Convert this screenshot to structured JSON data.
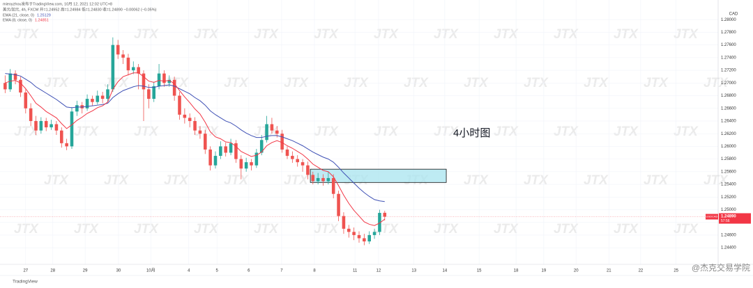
{
  "chart_data": {
    "type": "candlestick",
    "header": [
      "mieoyzhou发布于TradingView.com, 10月 12, 2021 12:02 UTC+8",
      "美元/加元, 4h, FXCM  开=1.24952 高=1.24984 低=1.24830 收=1.24890 −0.00062 (−0.05%)"
    ],
    "annotation": "4小时图",
    "currency": "CAD",
    "watermark": "JTX",
    "footer_brand": "TradingView",
    "credit": "@杰克交易学院",
    "up_color": "#26a69a",
    "down_color": "#ef5350",
    "grid": true,
    "open": [
      1.27,
      1.269,
      1.2715,
      1.2705,
      1.2685,
      1.266,
      1.264,
      1.2625,
      1.264,
      1.263,
      1.2635,
      1.2625,
      1.2605,
      1.26,
      1.2655,
      1.2665,
      1.266,
      1.2675,
      1.267,
      1.268,
      1.2675,
      1.269,
      1.276,
      1.2745,
      1.274,
      1.272,
      1.2725,
      1.2715,
      1.269,
      1.2675,
      1.2695,
      1.2715,
      1.27,
      1.2705,
      1.268,
      1.265,
      1.2645,
      1.264,
      1.2625,
      1.262,
      1.2595,
      1.257,
      1.2585,
      1.26,
      1.259,
      1.2605,
      1.258,
      1.2565,
      1.2575,
      1.257,
      1.259,
      1.261,
      1.2635,
      1.2625,
      1.262,
      1.2595,
      1.2585,
      1.258,
      1.2575,
      1.257,
      1.2555,
      1.2545,
      1.255,
      1.2545,
      1.255,
      1.2525,
      1.249,
      1.247,
      1.2465,
      1.246,
      1.2455,
      1.245,
      1.246,
      1.2465,
      1.24952
    ],
    "high": [
      1.2712,
      1.2722,
      1.272,
      1.271,
      1.269,
      1.2668,
      1.2648,
      1.2646,
      1.2645,
      1.2642,
      1.264,
      1.263,
      1.2612,
      1.2662,
      1.2672,
      1.267,
      1.2682,
      1.268,
      1.2688,
      1.2686,
      1.2698,
      1.2772,
      1.2768,
      1.2752,
      1.2746,
      1.2734,
      1.273,
      1.272,
      1.2698,
      1.2702,
      1.273,
      1.272,
      1.2712,
      1.271,
      1.2686,
      1.266,
      1.2652,
      1.2646,
      1.2632,
      1.2626,
      1.26,
      1.2592,
      1.2608,
      1.2606,
      1.2612,
      1.261,
      1.2586,
      1.2582,
      1.258,
      1.2596,
      1.2618,
      1.2648,
      1.2645,
      1.2632,
      1.2626,
      1.26,
      1.2592,
      1.2586,
      1.258,
      1.2576,
      1.256,
      1.2558,
      1.2556,
      1.256,
      1.2556,
      1.253,
      1.2496,
      1.2476,
      1.2472,
      1.2466,
      1.2462,
      1.2466,
      1.247,
      1.25,
      1.24984
    ],
    "low": [
      1.2684,
      1.2686,
      1.2698,
      1.2678,
      1.2652,
      1.2632,
      1.2618,
      1.262,
      1.2624,
      1.2626,
      1.2618,
      1.2598,
      1.2594,
      1.2596,
      1.2648,
      1.2652,
      1.2656,
      1.2664,
      1.2666,
      1.2668,
      1.267,
      1.2686,
      1.2738,
      1.273,
      1.2712,
      1.2714,
      1.269,
      1.264,
      1.266,
      1.267,
      1.269,
      1.2694,
      1.2694,
      1.2672,
      1.2642,
      1.2636,
      1.263,
      1.2618,
      1.2612,
      1.2588,
      1.2562,
      1.2565,
      1.258,
      1.2584,
      1.2586,
      1.2574,
      1.2548,
      1.256,
      1.2562,
      1.2566,
      1.2586,
      1.2606,
      1.262,
      1.2614,
      1.259,
      1.258,
      1.2574,
      1.2568,
      1.256,
      1.2548,
      1.254,
      1.254,
      1.2538,
      1.254,
      1.2518,
      1.2482,
      1.2462,
      1.2456,
      1.2452,
      1.2448,
      1.2444,
      1.2446,
      1.2454,
      1.246,
      1.2483
    ],
    "close": [
      1.269,
      1.2715,
      1.2705,
      1.2685,
      1.266,
      1.264,
      1.2625,
      1.264,
      1.263,
      1.2635,
      1.2625,
      1.2605,
      1.26,
      1.2655,
      1.2665,
      1.266,
      1.2675,
      1.267,
      1.268,
      1.2675,
      1.269,
      1.276,
      1.2745,
      1.274,
      1.272,
      1.2725,
      1.2715,
      1.269,
      1.2675,
      1.2695,
      1.2715,
      1.27,
      1.2705,
      1.268,
      1.265,
      1.2645,
      1.264,
      1.2625,
      1.262,
      1.2595,
      1.257,
      1.2585,
      1.26,
      1.259,
      1.2605,
      1.258,
      1.2565,
      1.2575,
      1.257,
      1.259,
      1.261,
      1.2635,
      1.2625,
      1.262,
      1.2595,
      1.2585,
      1.258,
      1.2575,
      1.257,
      1.2555,
      1.2545,
      1.255,
      1.2545,
      1.255,
      1.2525,
      1.249,
      1.247,
      1.2465,
      1.246,
      1.2455,
      1.245,
      1.246,
      1.2465,
      1.2495,
      1.2489
    ],
    "series": [
      {
        "name": "EMA (21, close, 0)",
        "color": "#3f51b5",
        "values": [
          1.2715,
          1.2714,
          1.2713,
          1.2711,
          1.2706,
          1.2701,
          1.2694,
          1.2689,
          1.2684,
          1.2679,
          1.2674,
          1.2668,
          1.2662,
          1.2661,
          1.2662,
          1.2662,
          1.2663,
          1.2664,
          1.2665,
          1.2666,
          1.2668,
          1.2677,
          1.2683,
          1.2688,
          1.2691,
          1.2694,
          1.2696,
          1.2695,
          1.2693,
          1.2693,
          1.2695,
          1.2696,
          1.2697,
          1.2695,
          1.2691,
          1.2687,
          1.2683,
          1.2677,
          1.2672,
          1.2665,
          1.2656,
          1.265,
          1.2645,
          1.264,
          1.2637,
          1.2632,
          1.2626,
          1.2621,
          1.2617,
          1.2614,
          1.2614,
          1.2616,
          1.2617,
          1.2617,
          1.2615,
          1.2612,
          1.2609,
          1.2605,
          1.2601,
          1.2596,
          1.2591,
          1.2587,
          1.2583,
          1.258,
          1.2575,
          1.2567,
          1.2558,
          1.255,
          1.2542,
          1.2534,
          1.2527,
          1.2521,
          1.2516,
          1.2514,
          1.25129
        ]
      },
      {
        "name": "EMA (8, close, 0)",
        "color": "#f23645",
        "values": [
          1.27,
          1.2703,
          1.2704,
          1.27,
          1.2691,
          1.268,
          1.2668,
          1.2662,
          1.2655,
          1.265,
          1.2645,
          1.2636,
          1.2628,
          1.2634,
          1.2641,
          1.2646,
          1.2652,
          1.2656,
          1.2661,
          1.2664,
          1.267,
          1.269,
          1.2702,
          1.271,
          1.2713,
          1.2716,
          1.2716,
          1.271,
          1.2703,
          1.2701,
          1.2704,
          1.2703,
          1.2704,
          1.2699,
          1.2688,
          1.2678,
          1.2669,
          1.2659,
          1.2651,
          1.2638,
          1.2623,
          1.2615,
          1.2612,
          1.2607,
          1.2606,
          1.26,
          1.2592,
          1.2588,
          1.2584,
          1.2586,
          1.2591,
          1.2601,
          1.2606,
          1.2609,
          1.2606,
          1.2601,
          1.2597,
          1.2592,
          1.2587,
          1.258,
          1.2572,
          1.2567,
          1.2562,
          1.256,
          1.2552,
          1.2538,
          1.2523,
          1.251,
          1.2499,
          1.249,
          1.2481,
          1.2477,
          1.2475,
          1.2479,
          1.24851
        ]
      }
    ],
    "highlight_zone": {
      "x": [
        59.5,
        86.0
      ],
      "y": [
        1.2543,
        1.2564
      ],
      "color": "#a8e4ef"
    },
    "price_marker": {
      "symbol": "USDCAD",
      "value": 1.2489,
      "label": "1.24890",
      "countdown": "57:56",
      "color": "#f23645"
    },
    "xlim": [
      -1,
      139
    ],
    "ylim": [
      1.2416,
      1.282
    ],
    "xticks": [
      {
        "value": 4.0,
        "label": "27"
      },
      {
        "value": 9.3,
        "label": "28"
      },
      {
        "value": 15.6,
        "label": "29"
      },
      {
        "value": 22.1,
        "label": "30"
      },
      {
        "value": 28.4,
        "label": "10月"
      },
      {
        "value": 35.8,
        "label": "4"
      },
      {
        "value": 41.3,
        "label": "5"
      },
      {
        "value": 47.5,
        "label": "6"
      },
      {
        "value": 53.9,
        "label": "7"
      },
      {
        "value": 60.3,
        "label": "8"
      },
      {
        "value": 68.2,
        "label": "11"
      },
      {
        "value": 72.8,
        "label": "12"
      },
      {
        "value": 79.7,
        "label": "13"
      },
      {
        "value": 85.7,
        "label": "14"
      },
      {
        "value": 92.4,
        "label": "15"
      },
      {
        "value": 99.6,
        "label": "18"
      },
      {
        "value": 105.0,
        "label": "19"
      },
      {
        "value": 111.3,
        "label": "20"
      },
      {
        "value": 117.7,
        "label": "21"
      },
      {
        "value": 123.9,
        "label": "22"
      },
      {
        "value": 130.8,
        "label": "25"
      }
    ],
    "yticks": [
      {
        "value": 1.244,
        "label": "1.24400"
      },
      {
        "value": 1.246,
        "label": "1.24600"
      },
      {
        "value": 1.248,
        "label": "1.24800"
      },
      {
        "value": 1.25,
        "label": "1.25000"
      },
      {
        "value": 1.252,
        "label": "1.25200"
      },
      {
        "value": 1.254,
        "label": "1.25400"
      },
      {
        "value": 1.256,
        "label": "1.25600"
      },
      {
        "value": 1.258,
        "label": "1.25800"
      },
      {
        "value": 1.26,
        "label": "1.26000"
      },
      {
        "value": 1.262,
        "label": "1.26200"
      },
      {
        "value": 1.264,
        "label": "1.26400"
      },
      {
        "value": 1.266,
        "label": "1.26600"
      },
      {
        "value": 1.268,
        "label": "1.26800"
      },
      {
        "value": 1.27,
        "label": "1.27000"
      },
      {
        "value": 1.272,
        "label": "1.27200"
      },
      {
        "value": 1.274,
        "label": "1.27400"
      },
      {
        "value": 1.276,
        "label": "1.27600"
      },
      {
        "value": 1.278,
        "label": "1.27800"
      },
      {
        "value": 1.28,
        "label": "1.28000"
      }
    ]
  }
}
